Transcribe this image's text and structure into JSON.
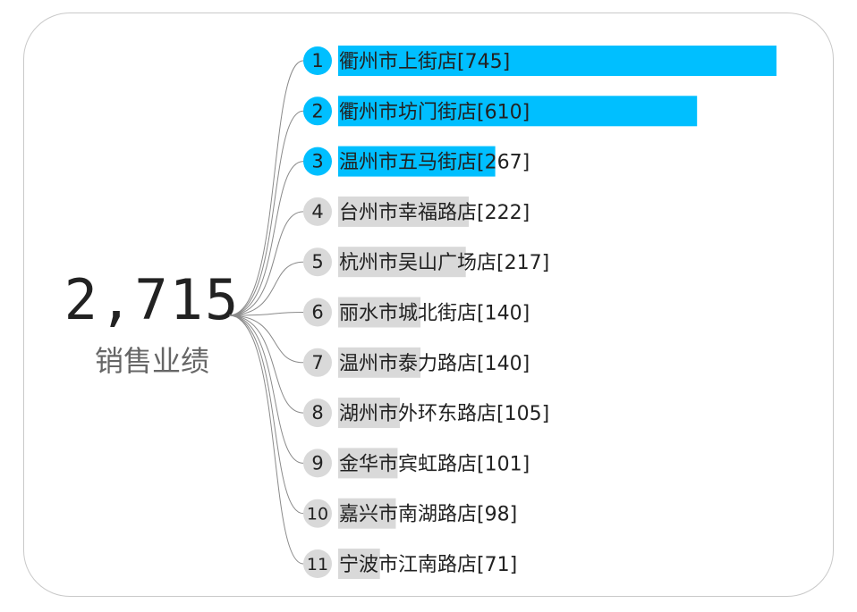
{
  "summary": {
    "total": "2,715",
    "caption": "销售业绩"
  },
  "colors": {
    "top_bar": "#00bfff",
    "other_bar": "#d9d9d9",
    "top_badge": "#00bfff",
    "other_badge": "#d9d9d9",
    "text": "#222222",
    "connector": "#8a8a8a"
  },
  "chart_data": {
    "type": "bar",
    "orientation": "horizontal",
    "highlight_top_n": 3,
    "xlim": [
      0,
      745
    ],
    "items": [
      {
        "rank": "1",
        "label": "衢州市上街店[745]",
        "value": 745
      },
      {
        "rank": "2",
        "label": "衢州市坊门街店[610]",
        "value": 610
      },
      {
        "rank": "3",
        "label": "温州市五马街店[267]",
        "value": 267
      },
      {
        "rank": "4",
        "label": "台州市幸福路店[222]",
        "value": 222
      },
      {
        "rank": "5",
        "label": "杭州市吴山广场店[217]",
        "value": 217
      },
      {
        "rank": "6",
        "label": "丽水市城北街店[140]",
        "value": 140
      },
      {
        "rank": "7",
        "label": "温州市泰力路店[140]",
        "value": 140
      },
      {
        "rank": "8",
        "label": "湖州市外环东路店[105]",
        "value": 105
      },
      {
        "rank": "9",
        "label": "金华市宾虹路店[101]",
        "value": 101
      },
      {
        "rank": "10",
        "label": "嘉兴市南湖路店[98]",
        "value": 98
      },
      {
        "rank": "11",
        "label": "宁波市江南路店[71]",
        "value": 71
      }
    ]
  }
}
